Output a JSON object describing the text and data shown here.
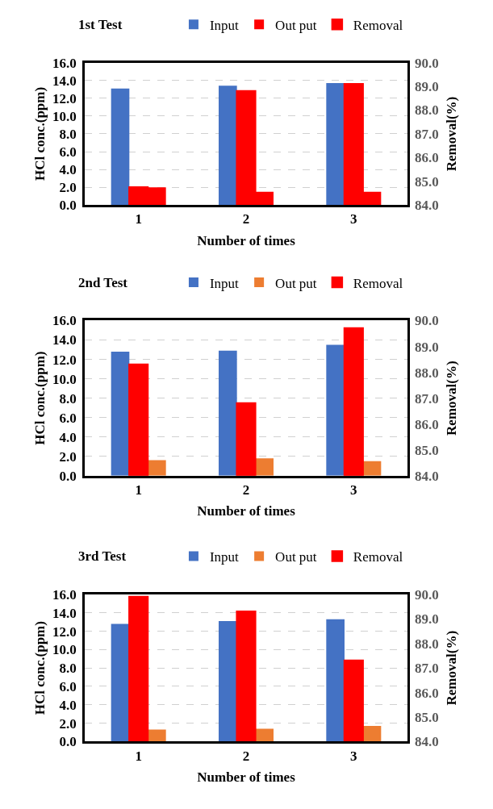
{
  "chart_data": [
    {
      "type": "bar",
      "title": "1st Test",
      "xlabel": "Number of times",
      "ylabel": "HCl conc.(ppm)",
      "y2label": "Removal(%)",
      "categories": [
        "1",
        "2",
        "3"
      ],
      "series": [
        {
          "name": "Input",
          "color": "#4472c4",
          "values": [
            13.1,
            13.4,
            13.7
          ]
        },
        {
          "name": "Removal",
          "color": "#ff0000",
          "axis": "y2",
          "values": [
            84.75,
            88.8,
            89.1
          ]
        },
        {
          "name": "Out put",
          "color": "#ff0000",
          "values": [
            2.0,
            1.5,
            1.5
          ]
        }
      ],
      "ylim": [
        0,
        16
      ],
      "yticks": [
        {
          "value": 0,
          "label": "0.0"
        },
        {
          "value": 2,
          "label": "2.0"
        },
        {
          "value": 4,
          "label": "4.0"
        },
        {
          "value": 6,
          "label": "6.0"
        },
        {
          "value": 8,
          "label": "8.0"
        },
        {
          "value": 10,
          "label": "10.0"
        },
        {
          "value": 12,
          "label": "12.0"
        },
        {
          "value": 14,
          "label": "14.0"
        },
        {
          "value": 16,
          "label": "16.0"
        }
      ],
      "y2lim": [
        84,
        90
      ],
      "y2ticks": [
        {
          "value": 84,
          "label": "84.0"
        },
        {
          "value": 85,
          "label": "85.0"
        },
        {
          "value": 86,
          "label": "86.0"
        },
        {
          "value": 87,
          "label": "87.0"
        },
        {
          "value": 88,
          "label": "88.0"
        },
        {
          "value": 89,
          "label": "89.0"
        },
        {
          "value": 90,
          "label": "90.0"
        }
      ],
      "grid": "y",
      "legend": "top"
    },
    {
      "type": "bar",
      "title": "2nd Test",
      "xlabel": "Number of times",
      "ylabel": "HCl conc.(ppm)",
      "y2label": "Removal(%)",
      "categories": [
        "1",
        "2",
        "3"
      ],
      "series": [
        {
          "name": "Input",
          "color": "#4472c4",
          "values": [
            12.8,
            12.9,
            13.5
          ]
        },
        {
          "name": "Removal",
          "color": "#ff0000",
          "axis": "y2",
          "values": [
            88.3,
            86.8,
            89.7
          ]
        },
        {
          "name": "Out put",
          "color": "#ed7d31",
          "values": [
            1.6,
            1.8,
            1.5
          ]
        }
      ],
      "ylim": [
        0,
        16
      ],
      "yticks": [
        {
          "value": 0,
          "label": "0.0"
        },
        {
          "value": 2,
          "label": "2.0"
        },
        {
          "value": 4,
          "label": "4.0"
        },
        {
          "value": 6,
          "label": "6.0"
        },
        {
          "value": 8,
          "label": "8.0"
        },
        {
          "value": 10,
          "label": "10.0"
        },
        {
          "value": 12,
          "label": "12.0"
        },
        {
          "value": 14,
          "label": "14.0"
        },
        {
          "value": 16,
          "label": "16.0"
        }
      ],
      "y2lim": [
        84,
        90
      ],
      "y2ticks": [
        {
          "value": 84,
          "label": "84.0"
        },
        {
          "value": 85,
          "label": "85.0"
        },
        {
          "value": 86,
          "label": "86.0"
        },
        {
          "value": 87,
          "label": "87.0"
        },
        {
          "value": 88,
          "label": "88.0"
        },
        {
          "value": 89,
          "label": "89.0"
        },
        {
          "value": 90,
          "label": "90.0"
        }
      ],
      "grid": "y",
      "legend": "top"
    },
    {
      "type": "bar",
      "title": "3rd Test",
      "xlabel": "Number of times",
      "ylabel": "HCl conc.(ppm)",
      "y2label": "Removal(%)",
      "categories": [
        "1",
        "2",
        "3"
      ],
      "series": [
        {
          "name": "Input",
          "color": "#4472c4",
          "values": [
            12.8,
            13.1,
            13.3
          ]
        },
        {
          "name": "Removal",
          "color": "#ff0000",
          "axis": "y2",
          "values": [
            89.9,
            89.3,
            87.3
          ]
        },
        {
          "name": "Out put",
          "color": "#ed7d31",
          "values": [
            1.3,
            1.4,
            1.7
          ]
        }
      ],
      "ylim": [
        0,
        16
      ],
      "yticks": [
        {
          "value": 0,
          "label": "0.0"
        },
        {
          "value": 2,
          "label": "2.0"
        },
        {
          "value": 4,
          "label": "4.0"
        },
        {
          "value": 6,
          "label": "6.0"
        },
        {
          "value": 8,
          "label": "8.0"
        },
        {
          "value": 10,
          "label": "10.0"
        },
        {
          "value": 12,
          "label": "12.0"
        },
        {
          "value": 14,
          "label": "14.0"
        },
        {
          "value": 16,
          "label": "16.0"
        }
      ],
      "y2lim": [
        84,
        90
      ],
      "y2ticks": [
        {
          "value": 84,
          "label": "84.0"
        },
        {
          "value": 85,
          "label": "85.0"
        },
        {
          "value": 86,
          "label": "86.0"
        },
        {
          "value": 87,
          "label": "87.0"
        },
        {
          "value": 88,
          "label": "88.0"
        },
        {
          "value": 89,
          "label": "89.0"
        },
        {
          "value": 90,
          "label": "90.0"
        }
      ],
      "grid": "y",
      "legend": "top"
    }
  ]
}
